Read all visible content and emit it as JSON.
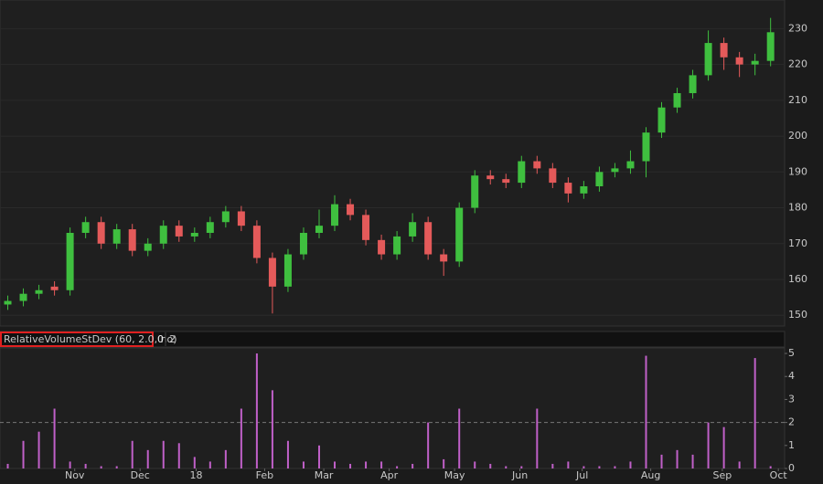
{
  "chart_data": [
    {
      "type": "candlestick",
      "x": [
        2.5,
        7.5,
        12.5,
        17.5,
        22.5,
        27.5,
        32.5,
        37.5,
        42.5,
        47.5,
        52.5,
        57.5,
        62.5,
        67.5,
        72.5,
        77.5,
        82.5,
        87.5,
        92.5,
        97.5,
        102.5,
        107.5,
        112.5,
        117.5,
        122.5,
        127.5,
        132.5,
        137.5,
        142.5,
        147.5,
        152.5,
        157.5,
        162.5,
        167.5,
        172.5,
        177.5,
        182.5,
        187.5,
        192.5,
        197.5,
        202.5,
        207.5,
        212.5,
        217.5,
        222.5,
        227.5,
        232.5,
        237.5,
        242.5,
        247.5
      ],
      "open": [
        153,
        154,
        156,
        158,
        157,
        173,
        176,
        170,
        174,
        168,
        170,
        175,
        172,
        173,
        176,
        179,
        175,
        166,
        158,
        167,
        173,
        175,
        181,
        178,
        171,
        167,
        172,
        176,
        167,
        165,
        180,
        189,
        188,
        187,
        193,
        191,
        187,
        184,
        186,
        190,
        191,
        193,
        201,
        208,
        212,
        217,
        226,
        222,
        220,
        221
      ],
      "high": [
        155.5,
        157.5,
        158.5,
        159.5,
        174.5,
        177.5,
        177.5,
        175.5,
        175.5,
        171.5,
        176.5,
        176.5,
        174.5,
        177.5,
        180.5,
        180.5,
        176.5,
        167.5,
        168.5,
        174.5,
        179.5,
        183.5,
        182.5,
        179.5,
        172.5,
        173.5,
        178.5,
        177.5,
        168.5,
        181.5,
        190.5,
        190.5,
        189.5,
        194.5,
        194.5,
        192.5,
        188.5,
        187.5,
        191.5,
        192.5,
        196,
        202.5,
        209.5,
        213.5,
        218.5,
        229.5,
        227.5,
        223.5,
        223,
        233
      ],
      "low": [
        151.5,
        152.5,
        154.5,
        155.5,
        155.5,
        171.5,
        168.5,
        168.5,
        166.5,
        166.5,
        168.5,
        170.5,
        170.5,
        171.5,
        174.5,
        173.5,
        164.5,
        150.5,
        156.5,
        165.5,
        171.5,
        173.5,
        176.5,
        169.5,
        165.5,
        165.5,
        170.5,
        165.5,
        161,
        163.5,
        178.5,
        186.5,
        185.5,
        185.5,
        189.5,
        185.5,
        181.5,
        182.5,
        184.5,
        188.5,
        189.5,
        188.5,
        199.5,
        206.5,
        210.5,
        215.5,
        218.5,
        216.5,
        217,
        219.5
      ],
      "close": [
        154,
        156,
        157,
        157,
        173,
        176,
        170,
        174,
        168,
        170,
        175,
        172,
        173,
        176,
        179,
        175,
        166,
        158,
        167,
        173,
        175,
        181,
        178,
        171,
        167,
        172,
        176,
        167,
        165,
        180,
        189,
        188,
        187,
        193,
        191,
        187,
        184,
        186,
        190,
        191,
        193,
        201,
        208,
        212,
        217,
        226,
        222,
        220,
        221,
        229
      ],
      "up_color": "#3fbf3f",
      "down_color": "#e45a5a",
      "xlim": [
        0,
        252
      ],
      "ylim": [
        147,
        238
      ],
      "yticks": [
        150,
        160,
        170,
        180,
        190,
        200,
        210,
        220,
        230
      ],
      "grid": true
    },
    {
      "type": "bar",
      "title": "RelativeVolumeStDev (60, 2.0, no)",
      "annotations": [
        "0",
        "2"
      ],
      "x": [
        2.5,
        7.5,
        12.5,
        17.5,
        22.5,
        27.5,
        32.5,
        37.5,
        42.5,
        47.5,
        52.5,
        57.5,
        62.5,
        67.5,
        72.5,
        77.5,
        82.5,
        87.5,
        92.5,
        97.5,
        102.5,
        107.5,
        112.5,
        117.5,
        122.5,
        127.5,
        132.5,
        137.5,
        142.5,
        147.5,
        152.5,
        157.5,
        162.5,
        167.5,
        172.5,
        177.5,
        182.5,
        187.5,
        192.5,
        197.5,
        202.5,
        207.5,
        212.5,
        217.5,
        222.5,
        227.5,
        232.5,
        237.5,
        242.5,
        247.5
      ],
      "values": [
        0.2,
        1.2,
        1.6,
        2.6,
        0.3,
        0.2,
        0.1,
        0.1,
        1.2,
        0.8,
        1.2,
        1.1,
        0.5,
        0.3,
        0.8,
        2.6,
        5.0,
        3.4,
        1.2,
        0.3,
        1.0,
        0.3,
        0.2,
        0.3,
        0.3,
        0.1,
        0.2,
        2.0,
        0.4,
        2.6,
        0.3,
        0.2,
        0.1,
        0.1,
        2.6,
        0.2,
        0.3,
        0.1,
        0.1,
        0.1,
        0.3,
        4.9,
        0.6,
        0.8,
        0.6,
        2.0,
        1.8,
        0.3,
        4.8,
        0.1
      ],
      "color": "#c060c8",
      "threshold": 2,
      "xlim": [
        0,
        252
      ],
      "ylim": [
        0,
        5.2
      ],
      "yticks": [
        0,
        1,
        2,
        3,
        4,
        5
      ],
      "xticks": [
        {
          "value": 24,
          "label": "Nov"
        },
        {
          "value": 45,
          "label": "Dec"
        },
        {
          "value": 63,
          "label": "18"
        },
        {
          "value": 85,
          "label": "Feb"
        },
        {
          "value": 104,
          "label": "Mar"
        },
        {
          "value": 125,
          "label": "Apr"
        },
        {
          "value": 146,
          "label": "May"
        },
        {
          "value": 167,
          "label": "Jun"
        },
        {
          "value": 187,
          "label": "Jul"
        },
        {
          "value": 209,
          "label": "Aug"
        },
        {
          "value": 232,
          "label": "Sep"
        },
        {
          "value": 250,
          "label": "Oct"
        }
      ]
    }
  ]
}
